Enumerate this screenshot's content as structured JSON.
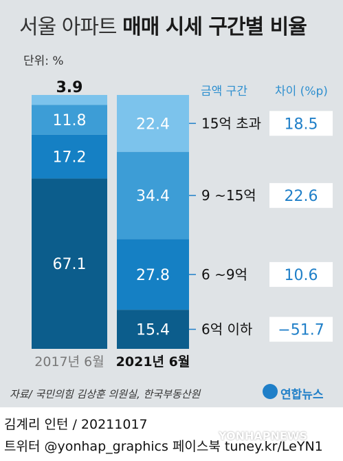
{
  "title": {
    "light": "서울 아파트",
    "bold": "매매 시세 구간별 비율"
  },
  "unit": "단위: %",
  "headers": {
    "range": "금액 구간",
    "diff": "차이 (%p)"
  },
  "source": "자료/ 국민의힘 김상훈 의원실, 한국부동산원",
  "logo": "연합뉴스",
  "credit": "김계리 인턴 / 20211017",
  "social": "트위터 @yonhap_graphics  페이스북 tuney.kr/LeYN1",
  "watermark": "YONHAPNEWS",
  "colors": {
    "seg_bottom": "#0c5d8c",
    "seg_2": "#1580c4",
    "seg_3": "#3d9dd6",
    "seg_top": "#7cc3ec",
    "background": "#dfe3e6",
    "accent": "#1f7fc8"
  },
  "chart_data": {
    "type": "bar",
    "stacked": true,
    "categories": [
      "2017년 6월",
      "2021년 6월"
    ],
    "series": [
      {
        "name": "6억 이하",
        "values": [
          67.1,
          15.4
        ]
      },
      {
        "name": "6 ~9억",
        "values": [
          17.2,
          27.8
        ]
      },
      {
        "name": "9 ~15억",
        "values": [
          11.8,
          34.4
        ]
      },
      {
        "name": "15억 초과",
        "values": [
          3.9,
          22.4
        ]
      }
    ],
    "labels": [
      [
        "67.1",
        "15.4"
      ],
      [
        "17.2",
        "27.8"
      ],
      [
        "11.8",
        "34.4"
      ],
      [
        "3.9",
        "22.4"
      ]
    ],
    "differences": [
      "−51.7",
      "10.6",
      "22.6",
      "18.5"
    ],
    "unit": "%"
  }
}
